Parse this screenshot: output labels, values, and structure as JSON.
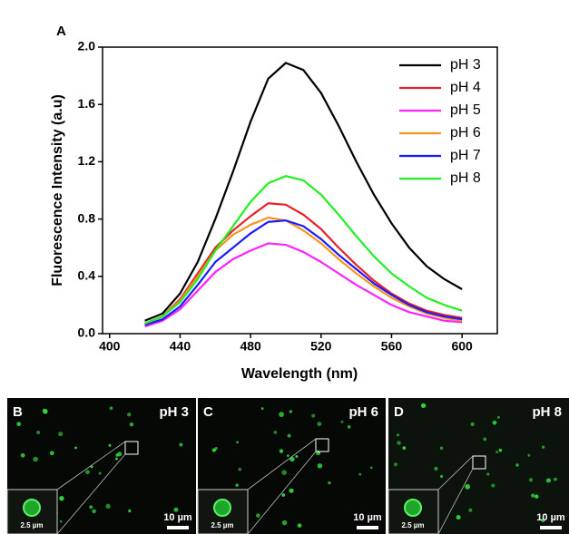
{
  "chart_data": {
    "type": "line",
    "panel_label": "A",
    "x_label": "Wavelength (nm)",
    "y_label": "Fluorescence Intensity (a.u)",
    "x": [
      420,
      430,
      440,
      450,
      460,
      470,
      480,
      490,
      500,
      510,
      520,
      530,
      540,
      550,
      560,
      570,
      580,
      590,
      600
    ],
    "series": [
      {
        "name": "pH 3",
        "color": "#000000",
        "values": [
          0.09,
          0.14,
          0.28,
          0.5,
          0.8,
          1.13,
          1.48,
          1.78,
          1.89,
          1.84,
          1.68,
          1.45,
          1.2,
          0.97,
          0.77,
          0.6,
          0.47,
          0.38,
          0.31
        ]
      },
      {
        "name": "pH 4",
        "color": "#e8202a",
        "values": [
          0.07,
          0.12,
          0.24,
          0.42,
          0.6,
          0.72,
          0.82,
          0.91,
          0.9,
          0.83,
          0.73,
          0.6,
          0.48,
          0.37,
          0.28,
          0.21,
          0.16,
          0.13,
          0.11
        ]
      },
      {
        "name": "pH 5",
        "color": "#ff22ff",
        "values": [
          0.05,
          0.09,
          0.17,
          0.3,
          0.43,
          0.52,
          0.58,
          0.63,
          0.62,
          0.57,
          0.5,
          0.42,
          0.34,
          0.27,
          0.2,
          0.15,
          0.12,
          0.09,
          0.08
        ]
      },
      {
        "name": "pH 6",
        "color": "#f7941d",
        "values": [
          0.07,
          0.12,
          0.23,
          0.4,
          0.58,
          0.69,
          0.76,
          0.81,
          0.79,
          0.72,
          0.63,
          0.52,
          0.42,
          0.33,
          0.25,
          0.19,
          0.14,
          0.11,
          0.09
        ]
      },
      {
        "name": "pH 7",
        "color": "#1a1aff",
        "values": [
          0.06,
          0.1,
          0.19,
          0.34,
          0.5,
          0.6,
          0.7,
          0.78,
          0.79,
          0.75,
          0.66,
          0.55,
          0.45,
          0.35,
          0.27,
          0.2,
          0.15,
          0.12,
          0.1
        ]
      },
      {
        "name": "pH 8",
        "color": "#22ee22",
        "values": [
          0.07,
          0.12,
          0.22,
          0.38,
          0.58,
          0.75,
          0.92,
          1.05,
          1.1,
          1.07,
          0.97,
          0.83,
          0.68,
          0.54,
          0.42,
          0.33,
          0.25,
          0.2,
          0.16
        ]
      }
    ],
    "xlim": [
      396,
      620
    ],
    "xticks": [
      400,
      440,
      480,
      520,
      560,
      600
    ],
    "ylim": [
      0,
      2.0
    ],
    "yticks": [
      {
        "value": 0,
        "label": "0.0"
      },
      {
        "value": 0.4,
        "label": "0.4"
      },
      {
        "value": 0.8,
        "label": "0.8"
      },
      {
        "value": 1.2,
        "label": "1.2"
      },
      {
        "value": 1.6,
        "label": "1.6"
      },
      {
        "value": 2.0,
        "label": "2.0"
      }
    ],
    "legend": "upper right",
    "grid": false
  },
  "panels": [
    {
      "letter": "B",
      "label": "pH 3",
      "inset_scale": "2.5 µm",
      "scale": "10 µm"
    },
    {
      "letter": "C",
      "label": "pH 6",
      "inset_scale": "2.5 µm",
      "scale": "10 µm"
    },
    {
      "letter": "D",
      "label": "pH 8",
      "inset_scale": "2.5 µm",
      "scale": "10 µm"
    }
  ]
}
